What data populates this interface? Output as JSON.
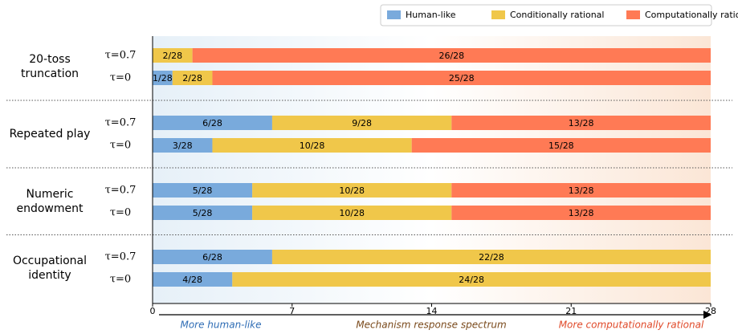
{
  "chart_data": {
    "type": "stacked-barh",
    "groups": [
      "20-toss truncation",
      "Repeated play",
      "Numeric endowment",
      "Occupational identity"
    ],
    "categories": [
      "τ=0.7",
      "τ=0",
      "τ=0.7",
      "τ=0",
      "τ=0.7",
      "τ=0",
      "τ=0.7",
      "τ=0"
    ],
    "series": [
      {
        "name": "Human-like",
        "color": "#79aadc",
        "values": [
          0,
          1,
          6,
          3,
          5,
          5,
          6,
          4
        ],
        "value_labels": [
          null,
          "1/28",
          "6/28",
          "3/28",
          "5/28",
          "5/28",
          "6/28",
          "4/28"
        ]
      },
      {
        "name": "Conditionally rational",
        "color": "#f0c74a",
        "values": [
          2,
          2,
          9,
          10,
          10,
          10,
          22,
          24
        ],
        "value_labels": [
          "2/28",
          "2/28",
          "9/28",
          "10/28",
          "10/28",
          "10/28",
          "22/28",
          "24/28"
        ]
      },
      {
        "name": "Computationally rational",
        "color": "#ff7a55",
        "values": [
          26,
          25,
          13,
          15,
          13,
          13,
          0,
          0
        ],
        "value_labels": [
          "26/28",
          "25/28",
          "13/28",
          "15/28",
          "13/28",
          "13/28",
          null,
          null
        ]
      }
    ],
    "xlim": [
      0,
      28
    ],
    "xticks": [
      0,
      7,
      14,
      21,
      28
    ],
    "annotations": [
      {
        "text": "More human-like",
        "color": "#2f6db5"
      },
      {
        "text": "Mechanism response spectrum",
        "color": "#7a4a1c"
      },
      {
        "text": "More computationally rational",
        "color": "#e04a2a"
      }
    ],
    "legend": "top-right"
  }
}
